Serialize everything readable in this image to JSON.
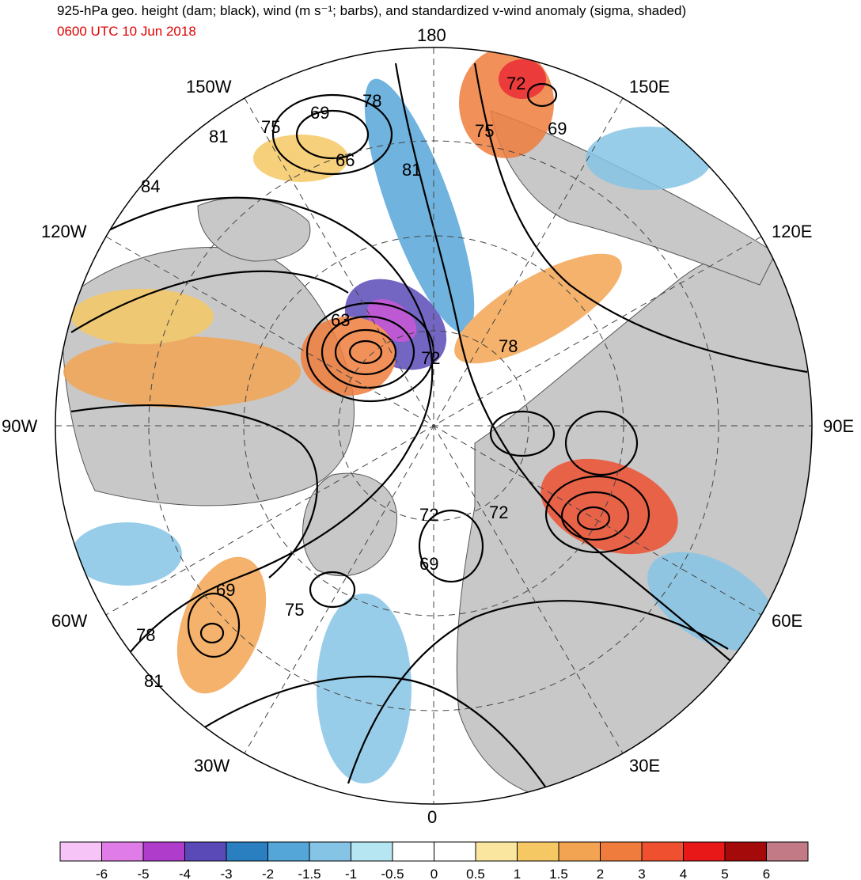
{
  "title": "925-hPa geo. height (dam; black), wind (m s⁻¹; barbs), and standardized v-wind anomaly (sigma, shaded)",
  "valid_time": "0600 UTC 10 Jun 2018",
  "longitude_labels": [
    "180",
    "150E",
    "120E",
    "90E",
    "60E",
    "30E",
    "0",
    "30W",
    "60W",
    "90W",
    "120W",
    "150W"
  ],
  "contour_labels": [
    "63",
    "66",
    "69",
    "69",
    "69",
    "69",
    "72",
    "72",
    "72",
    "72",
    "75",
    "75",
    "75",
    "78",
    "78",
    "78",
    "81",
    "81",
    "81",
    "84"
  ],
  "colorbar": {
    "tick_labels": [
      "-6",
      "-5",
      "-4",
      "-3",
      "-2",
      "-1.5",
      "-1",
      "-0.5",
      "0",
      "0.5",
      "1",
      "1.5",
      "2",
      "3",
      "4",
      "5",
      "6"
    ],
    "colors": [
      "#f6c4f6",
      "#e07ce8",
      "#b03ccc",
      "#5a4ab8",
      "#2a7fc0",
      "#55a6d8",
      "#86c4e6",
      "#b5e6f2",
      "#ffffff",
      "#ffffff",
      "#fbe6a0",
      "#f6c864",
      "#f3a452",
      "#ef7c3c",
      "#ee5030",
      "#e81818",
      "#a40a0a",
      "#c27a86"
    ]
  },
  "colors": {
    "land": "#c8c8c8",
    "ocean": "#ffffff",
    "contour": "#000000",
    "subtitle": "#e00000"
  }
}
